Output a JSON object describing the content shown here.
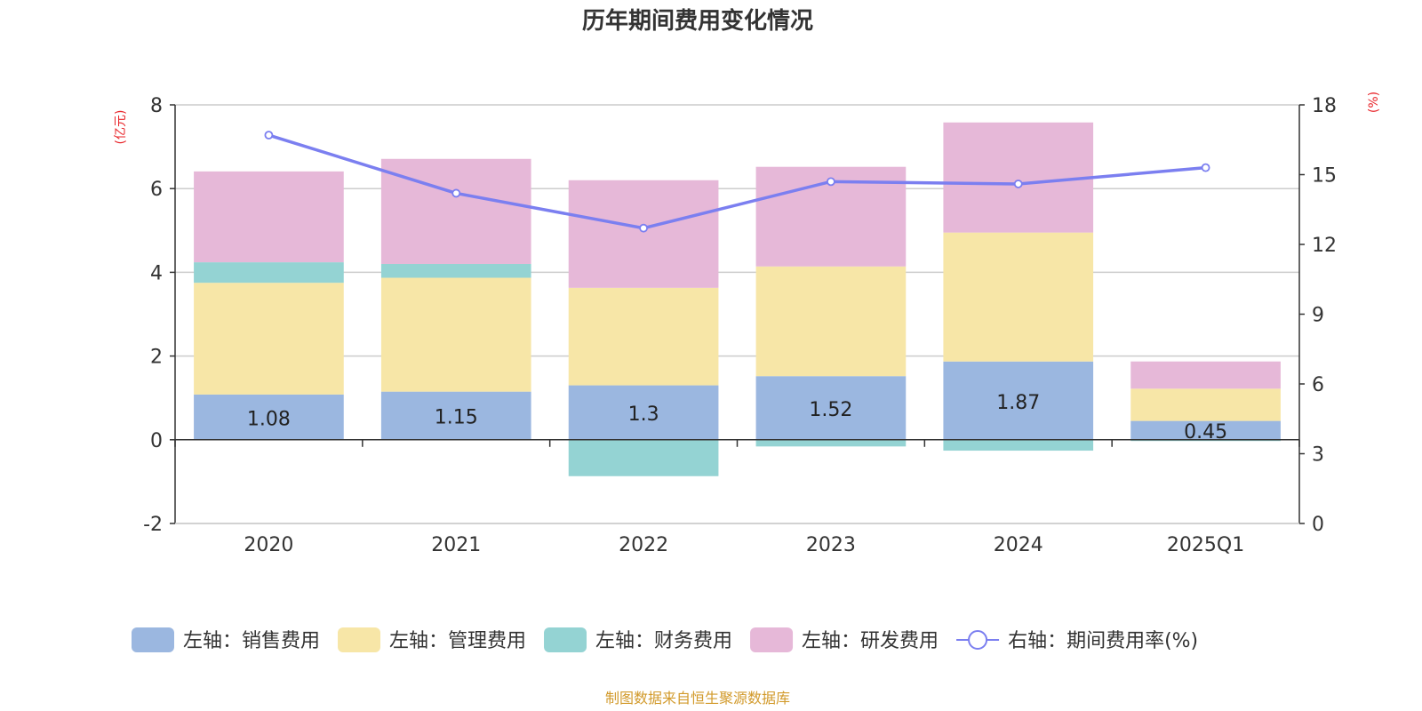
{
  "title": "历年期间费用变化情况",
  "left_axis_unit": "(亿元)",
  "right_axis_unit": "(%)",
  "source": "制图数据来自恒生聚源数据库",
  "colors": {
    "sales": "#9bb7e0",
    "admin": "#f7e6a7",
    "finance": "#94d3d3",
    "rd": "#e6b8d8",
    "rate": "#7b7ff0",
    "axis_unit": "#e8252a",
    "source": "#d29a2b",
    "grid": "#cccccc",
    "axis": "#333333"
  },
  "chart_data": {
    "type": "bar",
    "stacked": true,
    "categories": [
      "2020",
      "2021",
      "2022",
      "2023",
      "2024",
      "2025Q1"
    ],
    "left_axis": {
      "min": -2,
      "max": 8,
      "ticks": [
        -2,
        0,
        2,
        4,
        6,
        8
      ]
    },
    "right_axis": {
      "min": 0,
      "max": 18,
      "ticks": [
        0,
        3,
        6,
        9,
        12,
        15,
        18
      ]
    },
    "grid": true,
    "legend_position": "bottom",
    "series": [
      {
        "key": "sales",
        "name": "左轴：销售费用",
        "axis": "left",
        "values": [
          1.08,
          1.15,
          1.3,
          1.52,
          1.87,
          0.45
        ],
        "labels": [
          "1.08",
          "1.15",
          "1.3",
          "1.52",
          "1.87",
          "0.45"
        ]
      },
      {
        "key": "admin",
        "name": "左轴：管理费用",
        "axis": "left",
        "values": [
          2.67,
          2.72,
          2.33,
          2.62,
          3.08,
          0.77
        ]
      },
      {
        "key": "finance",
        "name": "左轴：财务费用",
        "axis": "left",
        "values": [
          0.49,
          0.33,
          -0.87,
          -0.16,
          -0.26,
          -0.03
        ]
      },
      {
        "key": "rd",
        "name": "左轴：研发费用",
        "axis": "left",
        "values": [
          2.17,
          2.51,
          2.57,
          2.38,
          2.63,
          0.65
        ]
      },
      {
        "key": "rate",
        "name": "右轴：期间费用率(%)",
        "axis": "right",
        "type": "line",
        "values": [
          16.7,
          14.2,
          12.7,
          14.7,
          14.6,
          15.3
        ]
      }
    ]
  }
}
